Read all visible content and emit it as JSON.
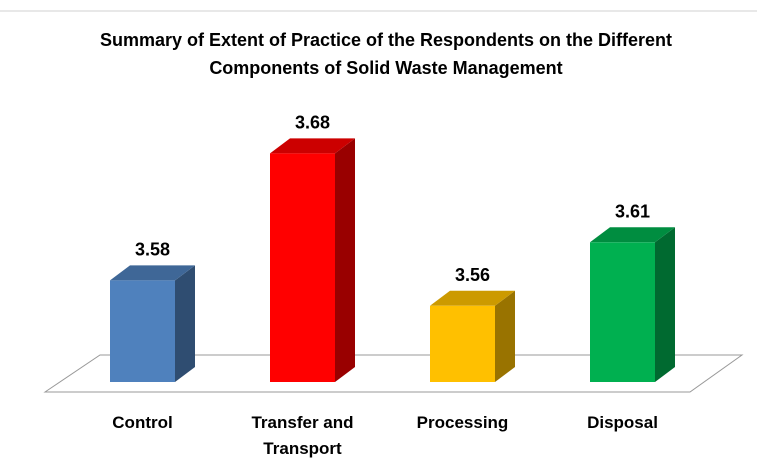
{
  "chart_data": {
    "type": "bar3d",
    "title": "Summary of Extent of Practice of the Respondents on the Different Components of Solid Waste Management",
    "categories": [
      "Control",
      "Transfer and Transport",
      "Processing",
      "Disposal"
    ],
    "values": [
      3.58,
      3.68,
      3.56,
      3.61
    ],
    "colors": [
      "#4f81bd",
      "#ff0000",
      "#ffc000",
      "#00b050"
    ],
    "ylim": [
      3.5,
      3.7
    ]
  }
}
